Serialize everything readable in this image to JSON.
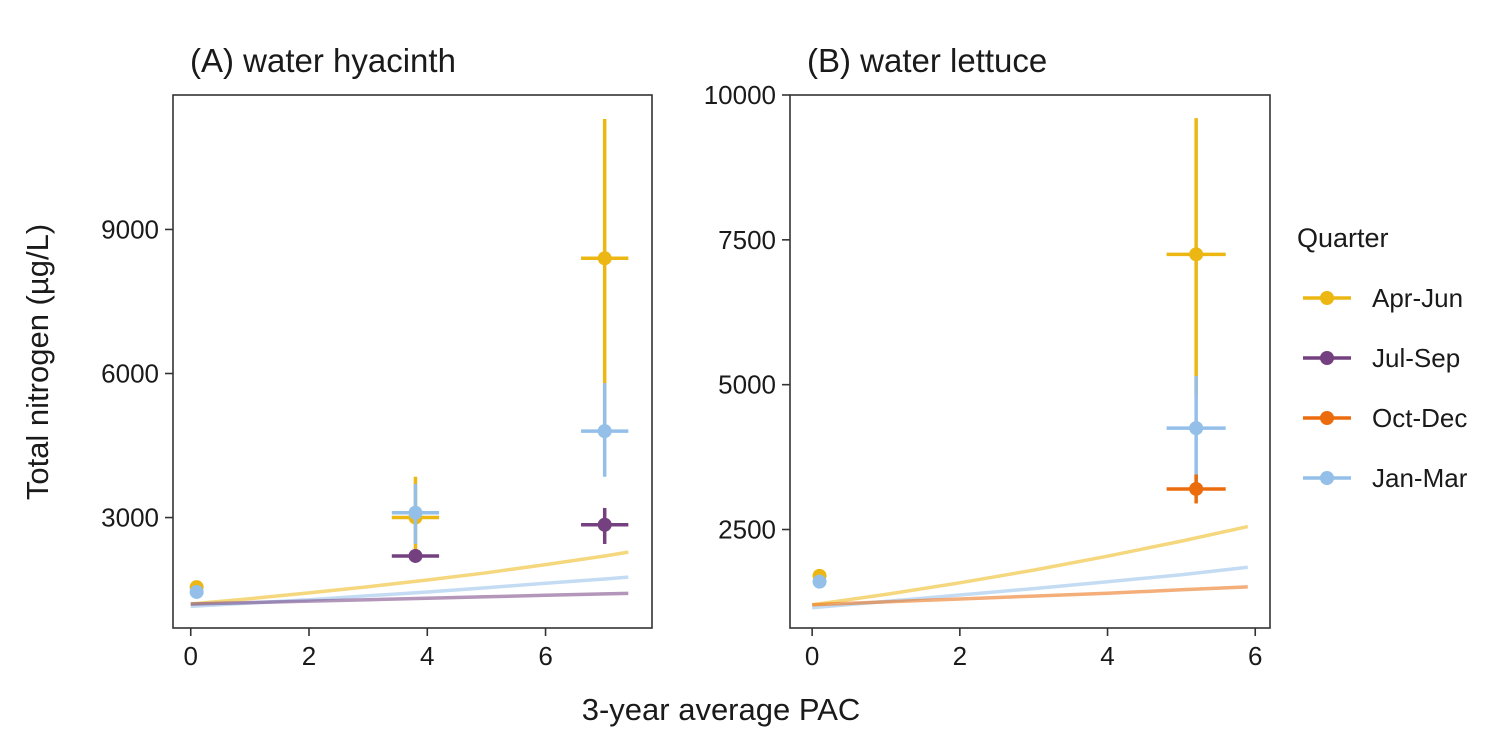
{
  "chart_data": {
    "type": "scatter",
    "xlabel": "3-year average PAC",
    "ylabel": "Total nitrogen (µg/L)",
    "legend": {
      "title": "Quarter",
      "placement": "right",
      "entries": [
        {
          "name": "Apr-Jun",
          "color": "#ecb713"
        },
        {
          "name": "Jul-Sep",
          "color": "#74407f"
        },
        {
          "name": "Oct-Dec",
          "color": "#eb6c0d"
        },
        {
          "name": "Jan-Mar",
          "color": "#94bfe9"
        }
      ]
    },
    "panels": [
      {
        "title": "(A) water hyacinth",
        "xlim": [
          -0.3,
          7.8
        ],
        "ylim": [
          700,
          11800
        ],
        "xticks": [
          0,
          2,
          4,
          6
        ],
        "yticks": [
          3000,
          6000,
          9000
        ],
        "show_ytick_labels": true,
        "points": [
          {
            "series": "Apr-Jun",
            "x": 0.1,
            "y": 1550,
            "xerr": [
              0.1,
              0.1
            ],
            "yerr": [
              1550,
              1550
            ]
          },
          {
            "series": "Jan-Mar",
            "x": 0.1,
            "y": 1450,
            "xerr": [
              0.1,
              0.1
            ],
            "yerr": [
              1450,
              1450
            ]
          },
          {
            "series": "Apr-Jun",
            "x": 3.8,
            "y": 3000,
            "xerr": [
              3.4,
              4.2
            ],
            "yerr": [
              2300,
              3850
            ]
          },
          {
            "series": "Jul-Sep",
            "x": 3.8,
            "y": 2200,
            "xerr": [
              3.4,
              4.2
            ],
            "yerr": [
              2200,
              2200
            ]
          },
          {
            "series": "Jan-Mar",
            "x": 3.8,
            "y": 3100,
            "xerr": [
              3.4,
              4.2
            ],
            "yerr": [
              2450,
              3700
            ]
          },
          {
            "series": "Apr-Jun",
            "x": 7.0,
            "y": 8400,
            "xerr": [
              6.6,
              7.4
            ],
            "yerr": [
              4800,
              11300
            ]
          },
          {
            "series": "Jul-Sep",
            "x": 7.0,
            "y": 2850,
            "xerr": [
              6.6,
              7.4
            ],
            "yerr": [
              2450,
              3200
            ]
          },
          {
            "series": "Jan-Mar",
            "x": 7.0,
            "y": 4800,
            "xerr": [
              6.6,
              7.4
            ],
            "yerr": [
              3850,
              5800
            ]
          }
        ],
        "fits": [
          {
            "series": "Apr-Jun",
            "x": [
              0,
              1,
              2,
              3,
              4,
              5,
              6,
              7,
              7.4
            ],
            "y": [
              1200,
              1310,
              1430,
              1560,
              1700,
              1850,
              2020,
              2200,
              2280
            ]
          },
          {
            "series": "Jan-Mar",
            "x": [
              0,
              1,
              2,
              3,
              4,
              5,
              6,
              7,
              7.4
            ],
            "y": [
              1150,
              1220,
              1290,
              1370,
              1450,
              1540,
              1630,
              1720,
              1760
            ]
          },
          {
            "series": "Jul-Sep",
            "x": [
              0,
              1,
              2,
              3,
              4,
              5,
              6,
              7,
              7.4
            ],
            "y": [
              1200,
              1230,
              1260,
              1290,
              1320,
              1350,
              1380,
              1410,
              1420
            ]
          }
        ]
      },
      {
        "title": "(B) water lettuce",
        "xlim": [
          -0.3,
          6.2
        ],
        "ylim": [
          800,
          10000
        ],
        "xticks": [
          0,
          2,
          4,
          6
        ],
        "yticks": [
          2500,
          5000,
          7500,
          10000
        ],
        "show_ytick_labels": true,
        "points": [
          {
            "series": "Apr-Jun",
            "x": 0.1,
            "y": 1700,
            "xerr": [
              0.1,
              0.1
            ],
            "yerr": [
              1700,
              1700
            ]
          },
          {
            "series": "Jan-Mar",
            "x": 0.1,
            "y": 1600,
            "xerr": [
              0.1,
              0.1
            ],
            "yerr": [
              1600,
              1600
            ]
          },
          {
            "series": "Apr-Jun",
            "x": 5.2,
            "y": 7250,
            "xerr": [
              4.8,
              5.6
            ],
            "yerr": [
              4800,
              9600
            ]
          },
          {
            "series": "Jan-Mar",
            "x": 5.2,
            "y": 4250,
            "xerr": [
              4.8,
              5.6
            ],
            "yerr": [
              3300,
              5150
            ]
          },
          {
            "series": "Oct-Dec",
            "x": 5.2,
            "y": 3200,
            "xerr": [
              4.8,
              5.6
            ],
            "yerr": [
              2950,
              3450
            ]
          }
        ],
        "fits": [
          {
            "series": "Apr-Jun",
            "x": [
              0,
              1,
              2,
              3,
              4,
              5,
              5.9
            ],
            "y": [
              1200,
              1380,
              1580,
              1800,
              2040,
              2300,
              2550
            ]
          },
          {
            "series": "Jan-Mar",
            "x": [
              0,
              1,
              2,
              3,
              4,
              5,
              5.9
            ],
            "y": [
              1150,
              1260,
              1370,
              1480,
              1600,
              1720,
              1850
            ]
          },
          {
            "series": "Oct-Dec",
            "x": [
              0,
              1,
              2,
              3,
              4,
              5,
              5.9
            ],
            "y": [
              1200,
              1250,
              1300,
              1350,
              1400,
              1460,
              1510
            ]
          }
        ]
      }
    ]
  }
}
